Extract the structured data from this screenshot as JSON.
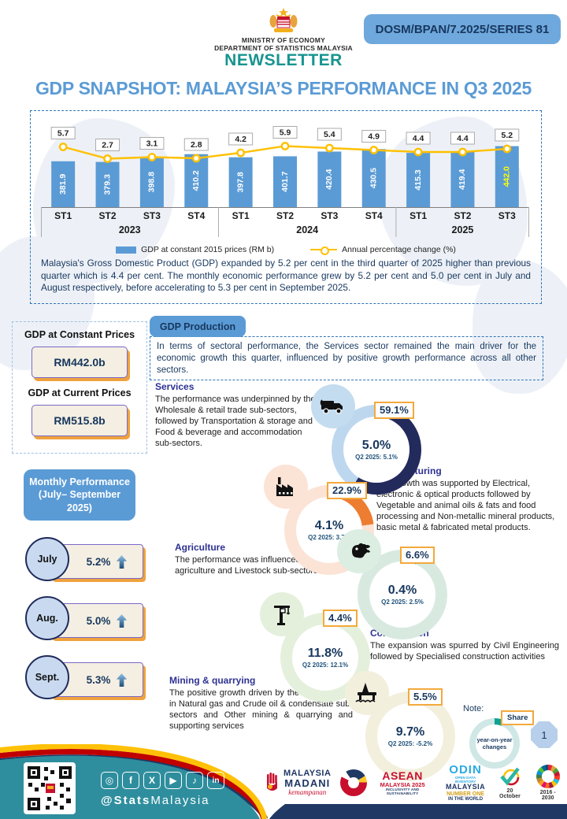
{
  "header": {
    "badge": "DOSM/BPAN/7.2025/SERIES 81",
    "ministry": "MINISTRY OF ECONOMY",
    "department": "DEPARTMENT OF STATISTICS MALAYSIA",
    "newsletter": "NEWSLETTER"
  },
  "title": "GDP SNAPSHOT: MALAYSIA’S PERFORMANCE IN Q3 2025",
  "chart_data": {
    "type": "bar+line",
    "categories": [
      "ST1",
      "ST2",
      "ST3",
      "ST4",
      "ST1",
      "ST2",
      "ST3",
      "ST4",
      "ST1",
      "ST2",
      "ST3"
    ],
    "year_groups": [
      {
        "label": "2023",
        "span": 4
      },
      {
        "label": "2024",
        "span": 4
      },
      {
        "label": "2025",
        "span": 3
      }
    ],
    "bar_series": {
      "name": "GDP at constant 2015 prices (RM b)",
      "values": [
        381.9,
        379.3,
        398.8,
        410.2,
        397.8,
        401.7,
        420.4,
        430.5,
        415.3,
        419.4,
        442.0
      ],
      "color": "#5B9BD5",
      "last_label_color": "#FFFF00"
    },
    "line_series": {
      "name": "Annual percentage change (%)",
      "values": [
        5.7,
        2.7,
        3.1,
        2.8,
        4.2,
        5.9,
        5.4,
        4.9,
        4.4,
        4.4,
        5.2
      ],
      "color": "#FFC000"
    },
    "grid": false,
    "legend_position": "bottom"
  },
  "summary": "Malaysia's Gross Domestic Product (GDP) expanded by 5.2 per cent in the third quarter of 2025 higher than previous quarter which is 4.4 per cent. The monthly economic performance grew by 5.2 per cent and 5.0 per cent in July and August respectively, before accelerating to 5.3 per cent in September 2025.",
  "gdp_boxes": {
    "constant_label": "GDP at Constant Prices",
    "constant_value": "RM442.0b",
    "current_label": "GDP at Current Prices",
    "current_value": "RM515.8b"
  },
  "production": {
    "tab": "GDP Production",
    "intro": "In terms of sectoral performance, the Services sector remained the main driver for the economic growth this quarter, influenced by positive growth performance across all other sectors."
  },
  "sectors": [
    {
      "name": "Services",
      "desc": "The performance was underpinned by the Wholesale & retail trade sub-sectors, followed by Transportation & storage and Food & beverage and accommodation sub-sectors.",
      "share": "59.1%",
      "growth": "5.0%",
      "prev": "Q2 2025: 5.1%",
      "icon": "truck-icon",
      "seg_color": "#232A5C",
      "rest_color": "#BDD7EE",
      "icon_bg": "#C3DCEF"
    },
    {
      "name": "Manufacturing",
      "desc": "The growth was supported by Electrical, electronic & optical products followed by Vegetable and animal oils & fats and food processing and Non-metallic mineral products, basic metal & fabricated metal products.",
      "share": "22.9%",
      "growth": "4.1%",
      "prev": "Q2 2025: 3.7%",
      "icon": "factory-icon",
      "seg_color": "#ED7D31",
      "rest_color": "#FBE3D6",
      "icon_bg": "#FBE3D6"
    },
    {
      "name": "Agriculture",
      "desc": "The performance was influenced by Other agriculture  and Livestock sub-sectors.",
      "share": "6.6%",
      "growth": "0.4%",
      "prev": "Q2 2025: 2.5%",
      "icon": "agriculture-icon",
      "seg_color": "#0FA294",
      "rest_color": "#D8EAE0",
      "icon_bg": "#DCEDE2"
    },
    {
      "name": "Construction",
      "desc": "The expansion was spurred by Civil Engineering followed by Specialised construction activities",
      "share": "4.4%",
      "growth": "11.8%",
      "prev": "Q2 2025: 12.1%",
      "icon": "crane-icon",
      "seg_color": "#5A8A31",
      "rest_color": "#E4F0DC",
      "icon_bg": "#E4F0DC"
    },
    {
      "name": "Mining & quarrying",
      "desc": "The positive growth driven by the strengthened in Natural gas and Crude oil & condensate sub-sectors and Other mining & quarrying and supporting services",
      "share": "5.5%",
      "growth": "9.7%",
      "prev": "Q2 2025: -5.2%",
      "icon": "oil-rig-icon",
      "seg_color": "#F2B01E",
      "rest_color": "#F3EFDD",
      "icon_bg": "#F3EFDD"
    }
  ],
  "monthly": {
    "header": "Monthly Performance (July– September 2025)",
    "items": [
      {
        "month": "July",
        "value": "5.2%"
      },
      {
        "month": "Aug.",
        "value": "5.0%"
      },
      {
        "month": "Sept.",
        "value": "5.3%"
      }
    ]
  },
  "note": {
    "label": "Note:",
    "share_label": "Share",
    "center_label": "year-on-year changes"
  },
  "page_number": "1",
  "footer": {
    "handle_bold": "@Stats",
    "handle_rest": "Malaysia",
    "social_icons": [
      "instagram-icon",
      "facebook-icon",
      "x-icon",
      "youtube-icon",
      "tiktok-icon",
      "linkedin-icon"
    ],
    "logos": {
      "madani_line1": "MALAYSIA",
      "madani_line2": "MADANI",
      "madani_script": "kemampanan",
      "asean_line1": "ASEAN",
      "asean_line2": "MALAYSIA 2025",
      "asean_line3": "INCLUSIVITY AND SUSTAINABILITY",
      "odin_line1": "ODIN",
      "odin_line2": "OPEN DATA INVENTORY",
      "odin_line3": "MALAYSIA",
      "odin_line4": "NUMBER ONE",
      "odin_line5": "IN THE WORLD",
      "wsd_date": "20 October",
      "sdg_years": "2016 - 2030"
    }
  },
  "colors": {
    "accent_blue": "#5B9BD5",
    "navy": "#1F3864",
    "bar": "#5B9BD5",
    "line": "#FFC000",
    "teal_band": "#2F8E9E",
    "share_border": "#F3A93C",
    "stripe_yellow": "#FFC107",
    "stripe_red": "#C00000"
  }
}
